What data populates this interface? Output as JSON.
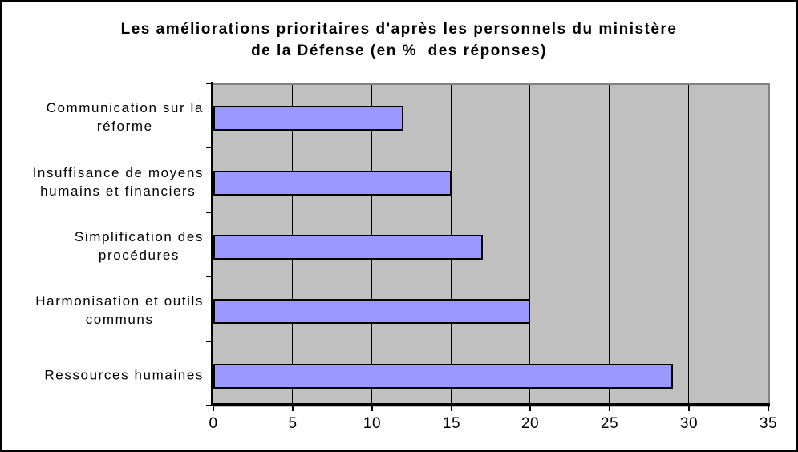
{
  "window": {
    "background": "#FFFFFF",
    "border_color": "#000000"
  },
  "chart_data": {
    "type": "bar",
    "orientation": "horizontal",
    "title": "Les améliorations prioritaires d'après les personnels du ministère de la Défense (en % des réponses)",
    "title_lines": [
      "Les améliorations prioritaires d'après les personnels du ministère",
      "de la Défense (en %  des réponses)"
    ],
    "categories": [
      "Communication sur la réforme",
      "Insuffisance de moyens humains et financiers",
      "Simplification des procédures",
      "Harmonisation et outils communs",
      "Ressources humaines"
    ],
    "category_label_lines": [
      [
        "Communication sur la",
        "réforme"
      ],
      [
        "Insuffisance de moyens",
        "humains et financiers"
      ],
      [
        "Simplification des",
        "procédures"
      ],
      [
        "Harmonisation et outils",
        "communs"
      ],
      [
        "Ressources humaines"
      ]
    ],
    "values": [
      12,
      15,
      17,
      20,
      29
    ],
    "xlabel": "",
    "ylabel": "",
    "xlim": [
      0,
      35
    ],
    "xticks": [
      0,
      5,
      10,
      15,
      20,
      25,
      30,
      35
    ],
    "grid": true,
    "legend": "none",
    "styles": {
      "bar_fill": "#9999FF",
      "bar_border": "#000000",
      "plot_background": "#C0C0C0",
      "plot_border": "#848284",
      "gridline_color": "#000000",
      "axis_color": "#000000",
      "text_color": "#000000"
    }
  }
}
